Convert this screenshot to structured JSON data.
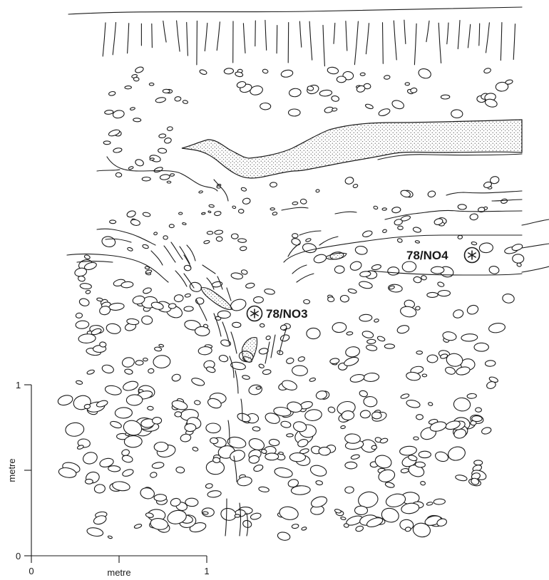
{
  "samples": [
    {
      "label": "78/NO4",
      "marker_side": "right"
    },
    {
      "label": "78/NO3",
      "marker_side": "left"
    }
  ],
  "scale_bar": {
    "vertical": {
      "axis_label": "metre",
      "ticks": [
        "0",
        "1"
      ]
    },
    "horizontal": {
      "axis_label": "metre",
      "ticks": [
        "0",
        "1"
      ]
    }
  },
  "colors": {
    "ink": "#1a1a1a",
    "background": "#ffffff"
  },
  "icons": {
    "sample_marker": "asterisk-in-circle-icon"
  }
}
